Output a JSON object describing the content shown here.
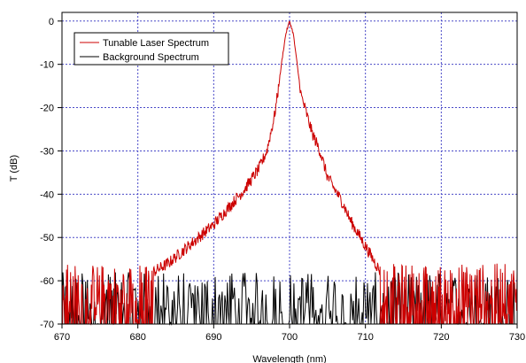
{
  "chart_data": {
    "type": "line",
    "title": "",
    "xlabel": "Wavelength (nm)",
    "ylabel": "T (dB)",
    "xlim": [
      670,
      730
    ],
    "ylim": [
      -70,
      2
    ],
    "x_ticks": [
      670,
      680,
      690,
      700,
      710,
      720,
      730
    ],
    "y_ticks": [
      0,
      -10,
      -20,
      -30,
      -40,
      -50,
      -60,
      -70
    ],
    "grid": true,
    "legend_position": "top-left",
    "series": [
      {
        "name": "Tunable Laser Spectrum",
        "color": "#cc0000",
        "shape": "sharp peak at 700 nm reaching 0 dB, slopes to noise floor near -60 dB at about 680 nm and 712 nm, then noise between -58 and -70 dB",
        "x": [
          670,
          675,
          680,
          682,
          684,
          686,
          688,
          690,
          692,
          694,
          696,
          697,
          698,
          698.5,
          699,
          699.5,
          700,
          700.5,
          701,
          701.5,
          702,
          703,
          704,
          705,
          706,
          707,
          708,
          709,
          710,
          711,
          712,
          713,
          715,
          720,
          725,
          730
        ],
        "values": [
          -62,
          -62,
          -61,
          -58,
          -56,
          -53,
          -50,
          -47,
          -43,
          -39,
          -34,
          -30,
          -22,
          -16,
          -9,
          -3,
          0,
          -3,
          -10,
          -17,
          -20,
          -26,
          -30,
          -36,
          -39,
          -42,
          -46,
          -49,
          -52,
          -55,
          -58,
          -61,
          -62,
          -62,
          -62,
          -62
        ]
      },
      {
        "name": "Background Spectrum",
        "color": "#000000",
        "shape": "noise floor between about -58 and -70 dB across the full range",
        "x": [
          670,
          730
        ],
        "values": [
          -64,
          -64
        ]
      }
    ]
  }
}
